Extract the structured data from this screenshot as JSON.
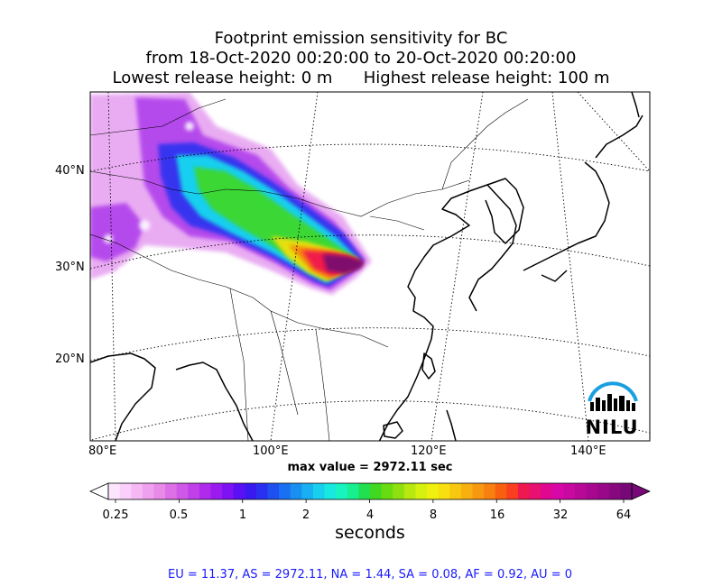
{
  "title": {
    "line1": "Footprint emission sensitivity for BC",
    "line2": "from 18-Oct-2020 00:20:00 to 20-Oct-2020 00:20:00",
    "line3_left": "Lowest release height: 0 m",
    "line3_right": "Highest release height: 100 m"
  },
  "map": {
    "lat_labels": [
      "40°N",
      "30°N",
      "20°N"
    ],
    "lon_labels": [
      "80°E",
      "100°E",
      "120°E",
      "140°E"
    ],
    "logo_text": "NILU"
  },
  "max_value": "max value = 2972.11 sec",
  "colorbar": {
    "labels": [
      "0.25",
      "0.5",
      "1",
      "2",
      "4",
      "8",
      "16",
      "32",
      "64"
    ],
    "unit": "seconds",
    "colors": [
      "#fde6fd",
      "#fad0fa",
      "#f5b8f5",
      "#efa0ef",
      "#e88ae8",
      "#dd70e6",
      "#cf58e8",
      "#c040ea",
      "#b02aec",
      "#9a1af0",
      "#7d12f2",
      "#5a10f2",
      "#3a18f0",
      "#2a30f0",
      "#1e50f0",
      "#1a70f2",
      "#1890f2",
      "#18b0f2",
      "#18d0ee",
      "#18e8e0",
      "#18f4c0",
      "#18f090",
      "#20e050",
      "#40d820",
      "#68dc10",
      "#90e010",
      "#b8e810",
      "#d8f010",
      "#f0f010",
      "#f8e010",
      "#f8c810",
      "#f8b010",
      "#f89810",
      "#f88010",
      "#f86010",
      "#f84020",
      "#f01850",
      "#e81070",
      "#e00890",
      "#d808a8",
      "#c808a0",
      "#b80898",
      "#a80890",
      "#980888",
      "#880880",
      "#780878"
    ]
  },
  "region_summary": "EU = 11.37,  AS = 2972.11,  NA = 1.44,  SA = 0.08,  AF = 0.92,  AU = 0"
}
